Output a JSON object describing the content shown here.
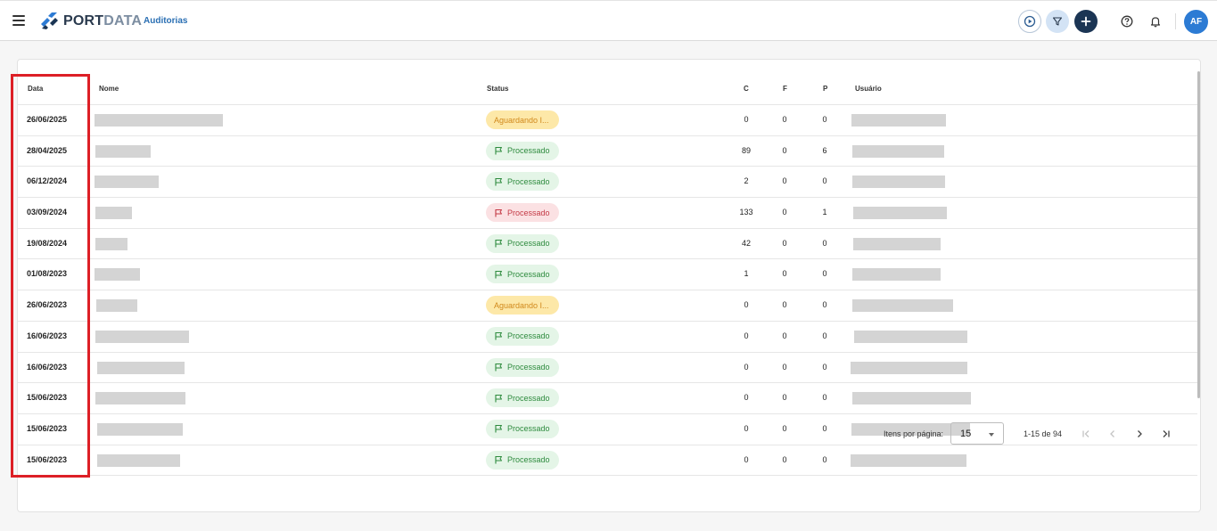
{
  "header": {
    "logo_port": "PORT",
    "logo_data": "DATA",
    "breadcrumb": "Auditorias",
    "avatar_initials": "AF",
    "icons": [
      "menu-icon",
      "play-icon",
      "filter-icon",
      "plus-icon",
      "help-icon",
      "bell-icon"
    ]
  },
  "table": {
    "columns": {
      "data": "Data",
      "nome": "Nome",
      "status": "Status",
      "c": "C",
      "f": "F",
      "p": "P",
      "usuario": "Usuário"
    },
    "rows": [
      {
        "date": "26/06/2025",
        "status": "Aguardando I...",
        "status_type": "pending",
        "c": "0",
        "f": "0",
        "p": "0"
      },
      {
        "date": "28/04/2025",
        "status": "Processado",
        "status_type": "ok",
        "c": "89",
        "f": "0",
        "p": "6"
      },
      {
        "date": "06/12/2024",
        "status": "Processado",
        "status_type": "ok",
        "c": "2",
        "f": "0",
        "p": "0"
      },
      {
        "date": "03/09/2024",
        "status": "Processado",
        "status_type": "error",
        "c": "133",
        "f": "0",
        "p": "1"
      },
      {
        "date": "19/08/2024",
        "status": "Processado",
        "status_type": "ok",
        "c": "42",
        "f": "0",
        "p": "0"
      },
      {
        "date": "01/08/2023",
        "status": "Processado",
        "status_type": "ok",
        "c": "1",
        "f": "0",
        "p": "0"
      },
      {
        "date": "26/06/2023",
        "status": "Aguardando I...",
        "status_type": "pending",
        "c": "0",
        "f": "0",
        "p": "0"
      },
      {
        "date": "16/06/2023",
        "status": "Processado",
        "status_type": "ok",
        "c": "0",
        "f": "0",
        "p": "0"
      },
      {
        "date": "16/06/2023",
        "status": "Processado",
        "status_type": "ok",
        "c": "0",
        "f": "0",
        "p": "0"
      },
      {
        "date": "15/06/2023",
        "status": "Processado",
        "status_type": "ok",
        "c": "0",
        "f": "0",
        "p": "0"
      },
      {
        "date": "15/06/2023",
        "status": "Processado",
        "status_type": "ok",
        "c": "0",
        "f": "0",
        "p": "0"
      },
      {
        "date": "15/06/2023",
        "status": "Processado",
        "status_type": "ok",
        "c": "0",
        "f": "0",
        "p": "0"
      }
    ]
  },
  "pagination": {
    "items_label": "Itens por página:",
    "page_size": "15",
    "range": "1-15 de 94"
  },
  "colors": {
    "accent": "#2c7bd4",
    "highlight": "#dd1f26",
    "pending": "#d1891c",
    "ok": "#2e8b3e",
    "error": "#c43a46"
  }
}
